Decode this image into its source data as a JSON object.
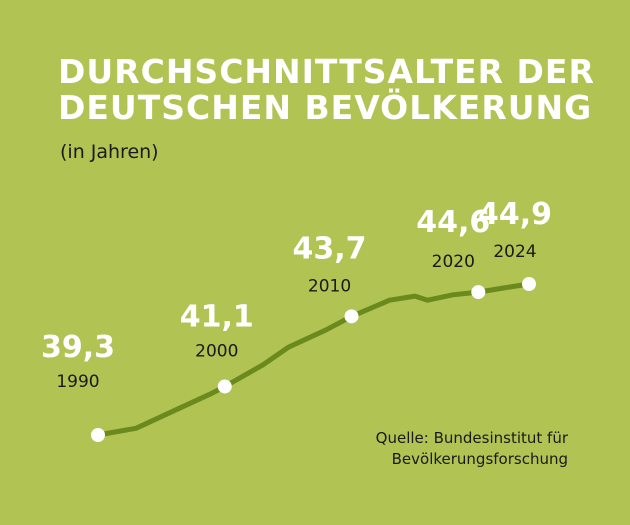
{
  "chart_data": {
    "type": "line",
    "title": [
      "DURCHSCHNITTSALTER DER",
      "DEUTSCHEN BEVÖLKERUNG"
    ],
    "subtitle": "(in Jahren)",
    "xlabel": "",
    "ylabel": "",
    "xlim": [
      1990,
      2024
    ],
    "ylim": [
      38,
      46
    ],
    "series": [
      {
        "name": "Durchschnittsalter",
        "x": [
          1990,
          1993,
          1996,
          1999,
          2000,
          2003,
          2005,
          2008,
          2010,
          2013,
          2015,
          2016,
          2018,
          2020,
          2022,
          2024
        ],
        "values": [
          39.3,
          39.55,
          40.2,
          40.85,
          41.1,
          41.9,
          42.55,
          43.2,
          43.7,
          44.3,
          44.45,
          44.3,
          44.5,
          44.6,
          44.75,
          44.9
        ]
      }
    ],
    "highlights": [
      {
        "x": 1990,
        "year_label": "1990",
        "value_label": "39,3"
      },
      {
        "x": 2000,
        "year_label": "2000",
        "value_label": "41,1"
      },
      {
        "x": 2010,
        "year_label": "2010",
        "value_label": "43,7"
      },
      {
        "x": 2020,
        "year_label": "2020",
        "value_label": "44,6"
      },
      {
        "x": 2024,
        "year_label": "2024",
        "value_label": "44,9"
      }
    ],
    "line_color": "#6a8a1e",
    "marker_color": "#ffffff",
    "background_color": "#b1c353"
  },
  "source": {
    "line1": "Quelle: Bundesinstitut für",
    "line2": "Bevölkerungsforschung"
  }
}
